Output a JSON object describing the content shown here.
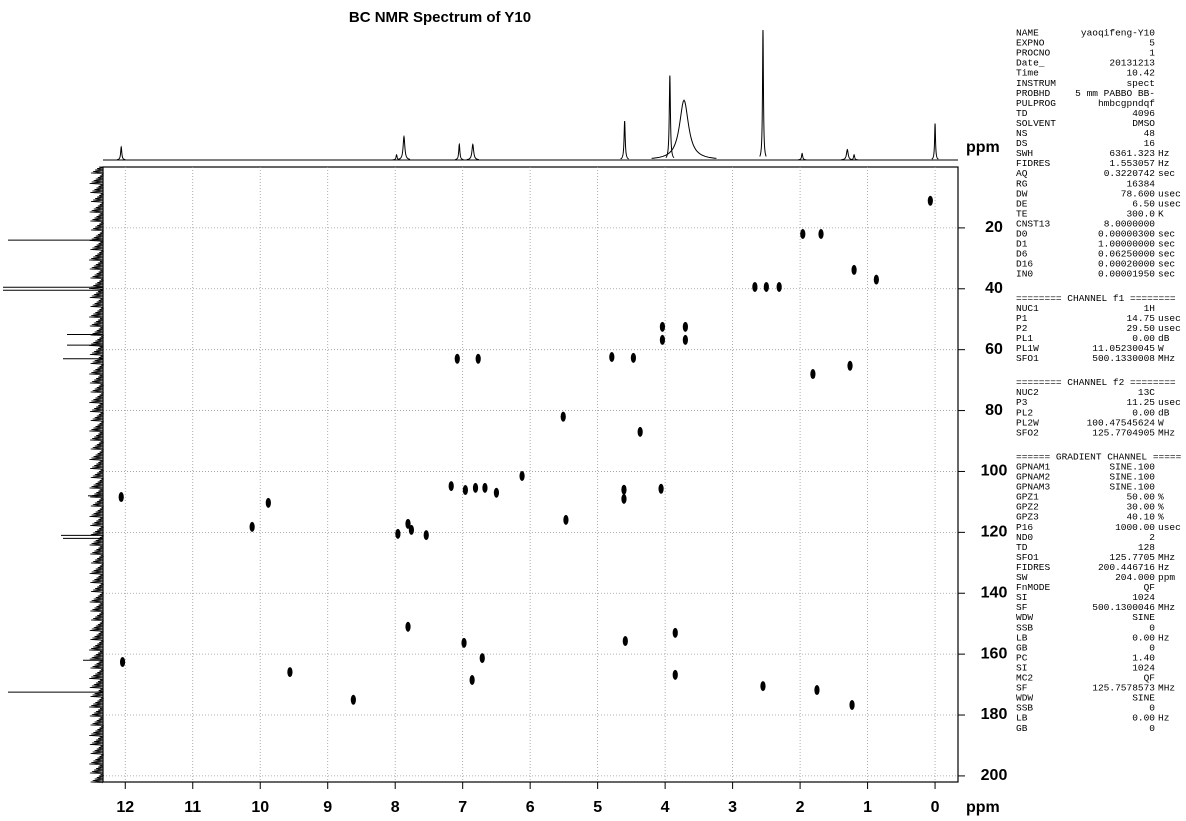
{
  "chart_data": {
    "type": "scatter",
    "title": "BC NMR Spectrum of Y10",
    "x_label": "ppm",
    "projection_label": "ppm",
    "xlim": [
      12.33,
      -0.34
    ],
    "ylim": [
      0,
      202
    ],
    "xticks": [
      12,
      11,
      10,
      9,
      8,
      7,
      6,
      5,
      4,
      3,
      2,
      1,
      0
    ],
    "yticks": [
      20,
      40,
      60,
      80,
      100,
      120,
      140,
      160,
      180,
      200
    ],
    "grid": true,
    "color": "#000000",
    "x": [
      12.06,
      12.04,
      0.07,
      1.96,
      1.69,
      1.2,
      0.87,
      2.67,
      2.5,
      2.31,
      4.04,
      4.04,
      3.7,
      3.7,
      7.08,
      6.77,
      4.79,
      4.47,
      1.81,
      1.26,
      5.51,
      4.37,
      6.12,
      7.17,
      6.96,
      6.81,
      6.67,
      6.5,
      4.61,
      4.61,
      4.06,
      9.88,
      10.12,
      5.47,
      7.96,
      7.76,
      7.54,
      7.81,
      7.81,
      4.59,
      3.85,
      6.98,
      6.71,
      3.85,
      6.86,
      9.56,
      8.62,
      1.75,
      2.55,
      1.23
    ],
    "values": [
      108.4,
      162.6,
      11.1,
      22,
      22,
      33.8,
      37,
      39.4,
      39.4,
      39.4,
      52.5,
      56.8,
      52.5,
      56.8,
      63,
      63,
      62.4,
      62.7,
      68,
      65.3,
      82,
      87,
      101.5,
      104.8,
      106.1,
      105.4,
      105.4,
      107,
      106,
      109,
      105.7,
      110.3,
      118.2,
      115.9,
      120.5,
      119.2,
      120.9,
      117.2,
      151,
      155.7,
      153,
      156.3,
      161.3,
      166.8,
      168.5,
      165.9,
      175,
      171.8,
      170.5,
      176.7
    ],
    "top_projection": {
      "x": [
        12.06,
        7.98,
        7.87,
        7.05,
        6.85,
        4.6,
        3.93,
        3.72,
        2.55,
        1.97,
        1.3,
        1.2,
        0.0
      ],
      "values": [
        10,
        4,
        18,
        12,
        12,
        30,
        65,
        46,
        100,
        5,
        8,
        4,
        28
      ],
      "widths": [
        0.01,
        0.01,
        0.015,
        0.01,
        0.015,
        0.01,
        0.01,
        0.08,
        0.008,
        0.01,
        0.015,
        0.01,
        0.008
      ]
    },
    "left_projection": {
      "ppm": [
        24,
        39.5,
        40.5,
        55,
        58.5,
        63,
        108,
        121,
        122,
        162,
        172.5
      ],
      "values": [
        95,
        100,
        100,
        36,
        36,
        40,
        15,
        42,
        40,
        20,
        95
      ]
    }
  },
  "parameters": [
    {
      "rows": [
        [
          "NAME",
          "yaoqifeng-Y10"
        ],
        [
          "EXPNO",
          "5"
        ],
        [
          "PROCNO",
          "1"
        ],
        [
          "Date_",
          "20131213"
        ],
        [
          "Time",
          "10.42"
        ],
        [
          "INSTRUM",
          "spect"
        ],
        [
          "PROBHD",
          "5 mm PABBO BB-"
        ],
        [
          "PULPROG",
          "hmbcgpndqf"
        ],
        [
          "TD",
          "4096"
        ],
        [
          "SOLVENT",
          "DMSO"
        ],
        [
          "NS",
          "48"
        ],
        [
          "DS",
          "16"
        ],
        [
          "SWH",
          "6361.323",
          "Hz"
        ],
        [
          "FIDRES",
          "1.553057",
          "Hz"
        ],
        [
          "AQ",
          "0.3220742",
          "sec"
        ],
        [
          "RG",
          "16384"
        ],
        [
          "DW",
          "78.600",
          "usec"
        ],
        [
          "DE",
          "6.50",
          "usec"
        ],
        [
          "TE",
          "300.0",
          "K"
        ],
        [
          "CNST13",
          "8.0000000"
        ],
        [
          "D0",
          "0.00000300",
          "sec"
        ],
        [
          "D1",
          "1.00000000",
          "sec"
        ],
        [
          "D6",
          "0.06250000",
          "sec"
        ],
        [
          "D16",
          "0.00020000",
          "sec"
        ],
        [
          "IN0",
          "0.00001950",
          "sec"
        ]
      ]
    },
    {
      "header": "======== CHANNEL f1 ========",
      "rows": [
        [
          "NUC1",
          "1H"
        ],
        [
          "P1",
          "14.75",
          "usec"
        ],
        [
          "P2",
          "29.50",
          "usec"
        ],
        [
          "PL1",
          "0.00",
          "dB"
        ],
        [
          "PL1W",
          "11.05230045",
          "W"
        ],
        [
          "SFO1",
          "500.1330008",
          "MHz"
        ]
      ]
    },
    {
      "header": "======== CHANNEL f2 ========",
      "rows": [
        [
          "NUC2",
          "13C"
        ],
        [
          "P3",
          "11.25",
          "usec"
        ],
        [
          "PL2",
          "0.00",
          "dB"
        ],
        [
          "PL2W",
          "100.47545624",
          "W"
        ],
        [
          "SFO2",
          "125.7704905",
          "MHz"
        ]
      ]
    },
    {
      "header": "====== GRADIENT CHANNEL =====",
      "rows": [
        [
          "GPNAM1",
          "SINE.100"
        ],
        [
          "GPNAM2",
          "SINE.100"
        ],
        [
          "GPNAM3",
          "SINE.100"
        ],
        [
          "GPZ1",
          "50.00",
          "%"
        ],
        [
          "GPZ2",
          "30.00",
          "%"
        ],
        [
          "GPZ3",
          "40.10",
          "%"
        ],
        [
          "P16",
          "1000.00",
          "usec"
        ],
        [
          "ND0",
          "2"
        ],
        [
          "TD",
          "128"
        ],
        [
          "SFO1",
          "125.7705",
          "MHz"
        ],
        [
          "FIDRES",
          "200.446716",
          "Hz"
        ],
        [
          "SW",
          "204.000",
          "ppm"
        ],
        [
          "FnMODE",
          "QF"
        ],
        [
          "SI",
          "1024"
        ],
        [
          "SF",
          "500.1300046",
          "MHz"
        ],
        [
          "WDW",
          "SINE"
        ],
        [
          "SSB",
          "0"
        ],
        [
          "LB",
          "0.00",
          "Hz"
        ],
        [
          "GB",
          "0"
        ],
        [
          "PC",
          "1.40"
        ],
        [
          "SI",
          "1024"
        ],
        [
          "MC2",
          "QF"
        ],
        [
          "SF",
          "125.7578573",
          "MHz"
        ],
        [
          "WDW",
          "SINE"
        ],
        [
          "SSB",
          "0"
        ],
        [
          "LB",
          "0.00",
          "Hz"
        ],
        [
          "GB",
          "0"
        ]
      ]
    }
  ]
}
